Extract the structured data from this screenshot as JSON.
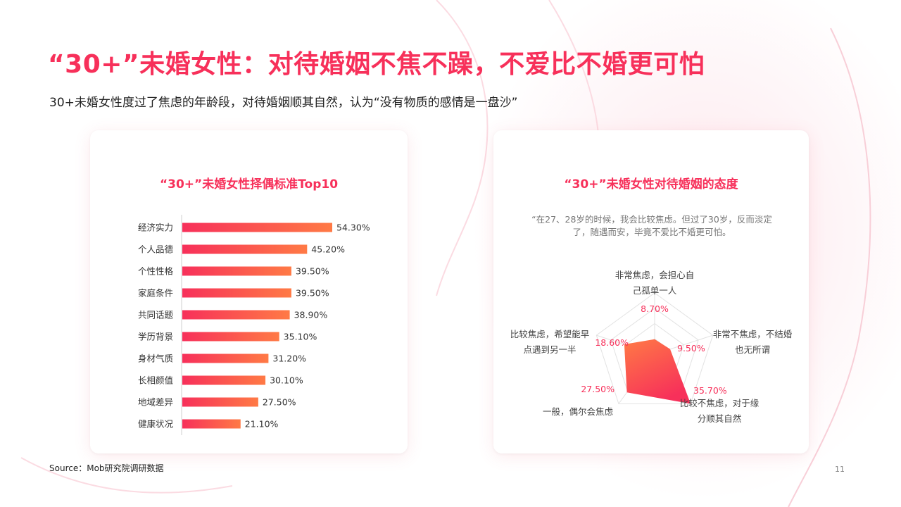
{
  "page": {
    "title": "“30+”未婚女性：对待婚姻不焦不躁，不爱比不婚更可怕",
    "subtitle": "30+未婚女性度过了焦虑的年龄段，对待婚姻顺其自然，认为“没有物质的感情是一盘沙”",
    "source": "Source：Mob研究院调研数据",
    "page_number": "11"
  },
  "colors": {
    "accent": "#f7305a",
    "bar_gradient_start": "#f7305a",
    "bar_gradient_end": "#ff7a45"
  },
  "chart_data": [
    {
      "type": "bar",
      "orientation": "horizontal",
      "title": "“30+”未婚女性择偶标准Top10",
      "categories": [
        "经济实力",
        "个人品德",
        "个性性格",
        "家庭条件",
        "共同话题",
        "学历背景",
        "身材气质",
        "长相颜值",
        "地域差异",
        "健康状况"
      ],
      "values": [
        54.3,
        45.2,
        39.5,
        39.5,
        38.9,
        35.1,
        31.2,
        30.1,
        27.5,
        21.1
      ],
      "value_labels": [
        "54.30%",
        "45.20%",
        "39.50%",
        "39.50%",
        "38.90%",
        "35.10%",
        "31.20%",
        "30.10%",
        "27.50%",
        "21.10%"
      ],
      "unit": "%"
    },
    {
      "type": "radar",
      "title": "“30+”未婚女性对待婚姻的态度",
      "quote": "“在27、28岁的时候，我会比较焦虑。但过了30岁，反而淡定了，随遇而安，毕竟不爱比不婚更可怕。",
      "axes": [
        {
          "label_lines": [
            "非常焦虑，会担心自",
            "己孤单一人"
          ],
          "value": 8.7,
          "value_label": "8.70%"
        },
        {
          "label_lines": [
            "非常不焦虑，不结婚",
            "也无所谓"
          ],
          "value": 9.5,
          "value_label": "9.50%"
        },
        {
          "label_lines": [
            "比较不焦虑，对于缘",
            "分顺其自然"
          ],
          "value": 35.7,
          "value_label": "35.70%"
        },
        {
          "label_lines": [
            "一般，偶尔会焦虑"
          ],
          "value": 27.5,
          "value_label": "27.50%"
        },
        {
          "label_lines": [
            "比较焦虑，希望能早",
            "点遇到另一半"
          ],
          "value": 18.6,
          "value_label": "18.60%"
        }
      ],
      "max_value": 35.7
    }
  ]
}
